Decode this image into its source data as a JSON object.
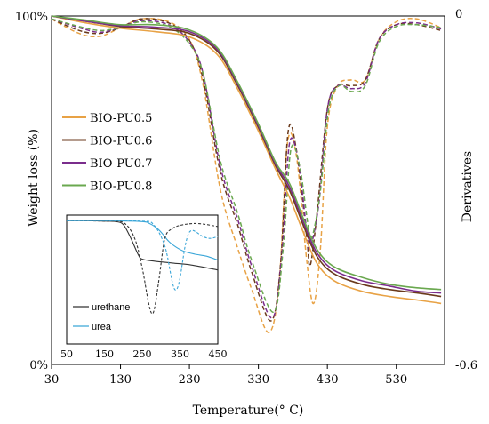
{
  "chart_data": {
    "type": "line",
    "xlabel": "Temperature(° C)",
    "ylabel": "Weight loss (%)",
    "ylabel_right": "Derivatives",
    "xlim": [
      30,
      600
    ],
    "x_ticks": [
      "30",
      "130",
      "230",
      "330",
      "430",
      "530"
    ],
    "ylim": [
      0,
      100
    ],
    "y_ticks": [
      "0%",
      "100%"
    ],
    "y2lim": [
      -0.6,
      0
    ],
    "y2_ticks": [
      "0",
      "-0.6"
    ],
    "legend_position": "left",
    "colors": {
      "BIO-PU0.5": "#e8a245",
      "BIO-PU0.6": "#6b3a1c",
      "BIO-PU0.7": "#7a2d8c",
      "BIO-PU0.8": "#6aa84f"
    },
    "series": [
      {
        "name": "BIO-PU0.5",
        "type": "weight",
        "points": [
          [
            30,
            100
          ],
          [
            80,
            98
          ],
          [
            130,
            96.5
          ],
          [
            180,
            95.5
          ],
          [
            230,
            94
          ],
          [
            270,
            89
          ],
          [
            300,
            79
          ],
          [
            330,
            67
          ],
          [
            355,
            56
          ],
          [
            375,
            48
          ],
          [
            395,
            38
          ],
          [
            415,
            29
          ],
          [
            440,
            24
          ],
          [
            480,
            21
          ],
          [
            520,
            19.5
          ],
          [
            560,
            18.5
          ],
          [
            595,
            17.5
          ]
        ]
      },
      {
        "name": "BIO-PU0.6",
        "type": "weight",
        "points": [
          [
            30,
            100
          ],
          [
            80,
            98.5
          ],
          [
            130,
            97
          ],
          [
            180,
            96.3
          ],
          [
            230,
            95
          ],
          [
            270,
            90
          ],
          [
            300,
            80
          ],
          [
            330,
            68
          ],
          [
            355,
            57
          ],
          [
            375,
            50
          ],
          [
            395,
            40
          ],
          [
            415,
            31
          ],
          [
            440,
            26
          ],
          [
            480,
            23
          ],
          [
            520,
            21.5
          ],
          [
            560,
            20.5
          ],
          [
            595,
            19.5
          ]
        ]
      },
      {
        "name": "BIO-PU0.7",
        "type": "weight",
        "points": [
          [
            30,
            100
          ],
          [
            80,
            98.5
          ],
          [
            130,
            97.2
          ],
          [
            180,
            96.8
          ],
          [
            230,
            95.5
          ],
          [
            270,
            90.5
          ],
          [
            300,
            80.5
          ],
          [
            330,
            68.5
          ],
          [
            355,
            57.5
          ],
          [
            375,
            51
          ],
          [
            395,
            41
          ],
          [
            415,
            32
          ],
          [
            440,
            27
          ],
          [
            480,
            24
          ],
          [
            520,
            22.5
          ],
          [
            560,
            21
          ],
          [
            595,
            20.5
          ]
        ]
      },
      {
        "name": "BIO-PU0.8",
        "type": "weight",
        "points": [
          [
            30,
            100
          ],
          [
            80,
            98.8
          ],
          [
            130,
            97.5
          ],
          [
            180,
            97.5
          ],
          [
            230,
            96
          ],
          [
            270,
            91
          ],
          [
            300,
            81
          ],
          [
            330,
            69
          ],
          [
            355,
            58
          ],
          [
            375,
            52
          ],
          [
            395,
            42
          ],
          [
            415,
            33
          ],
          [
            440,
            28
          ],
          [
            480,
            25
          ],
          [
            520,
            23
          ],
          [
            560,
            22
          ],
          [
            595,
            21.5
          ]
        ]
      },
      {
        "name": "BIO-PU0.5",
        "type": "derivative",
        "points": [
          [
            30,
            -0.005
          ],
          [
            70,
            -0.03
          ],
          [
            100,
            -0.035
          ],
          [
            130,
            -0.02
          ],
          [
            160,
            -0.005
          ],
          [
            200,
            -0.01
          ],
          [
            230,
            -0.04
          ],
          [
            250,
            -0.12
          ],
          [
            275,
            -0.3
          ],
          [
            300,
            -0.4
          ],
          [
            320,
            -0.47
          ],
          [
            345,
            -0.545
          ],
          [
            360,
            -0.46
          ],
          [
            372,
            -0.22
          ],
          [
            385,
            -0.24
          ],
          [
            400,
            -0.42
          ],
          [
            410,
            -0.495
          ],
          [
            420,
            -0.4
          ],
          [
            430,
            -0.19
          ],
          [
            445,
            -0.12
          ],
          [
            465,
            -0.11
          ],
          [
            485,
            -0.11
          ],
          [
            505,
            -0.04
          ],
          [
            530,
            -0.01
          ],
          [
            560,
            -0.005
          ],
          [
            595,
            -0.02
          ]
        ]
      },
      {
        "name": "BIO-PU0.6",
        "type": "derivative",
        "points": [
          [
            30,
            -0.005
          ],
          [
            70,
            -0.025
          ],
          [
            100,
            -0.03
          ],
          [
            130,
            -0.02
          ],
          [
            160,
            -0.005
          ],
          [
            200,
            -0.012
          ],
          [
            230,
            -0.042
          ],
          [
            250,
            -0.11
          ],
          [
            275,
            -0.27
          ],
          [
            300,
            -0.36
          ],
          [
            320,
            -0.44
          ],
          [
            348,
            -0.525
          ],
          [
            362,
            -0.43
          ],
          [
            373,
            -0.2
          ],
          [
            385,
            -0.23
          ],
          [
            400,
            -0.38
          ],
          [
            405,
            -0.43
          ],
          [
            415,
            -0.34
          ],
          [
            430,
            -0.16
          ],
          [
            445,
            -0.12
          ],
          [
            465,
            -0.12
          ],
          [
            485,
            -0.11
          ],
          [
            505,
            -0.04
          ],
          [
            530,
            -0.015
          ],
          [
            560,
            -0.015
          ],
          [
            595,
            -0.025
          ]
        ]
      },
      {
        "name": "BIO-PU0.7",
        "type": "derivative",
        "points": [
          [
            30,
            -0.005
          ],
          [
            70,
            -0.02
          ],
          [
            100,
            -0.028
          ],
          [
            130,
            -0.02
          ],
          [
            160,
            -0.008
          ],
          [
            200,
            -0.015
          ],
          [
            230,
            -0.045
          ],
          [
            250,
            -0.1
          ],
          [
            275,
            -0.26
          ],
          [
            300,
            -0.35
          ],
          [
            320,
            -0.43
          ],
          [
            350,
            -0.52
          ],
          [
            364,
            -0.41
          ],
          [
            375,
            -0.22
          ],
          [
            388,
            -0.25
          ],
          [
            400,
            -0.37
          ],
          [
            405,
            -0.4
          ],
          [
            418,
            -0.32
          ],
          [
            430,
            -0.16
          ],
          [
            445,
            -0.12
          ],
          [
            465,
            -0.125
          ],
          [
            485,
            -0.115
          ],
          [
            505,
            -0.04
          ],
          [
            530,
            -0.015
          ],
          [
            560,
            -0.012
          ],
          [
            595,
            -0.022
          ]
        ]
      },
      {
        "name": "BIO-PU0.8",
        "type": "derivative",
        "points": [
          [
            30,
            -0.005
          ],
          [
            70,
            -0.018
          ],
          [
            100,
            -0.025
          ],
          [
            130,
            -0.02
          ],
          [
            160,
            -0.01
          ],
          [
            200,
            -0.018
          ],
          [
            230,
            -0.048
          ],
          [
            250,
            -0.1
          ],
          [
            275,
            -0.25
          ],
          [
            300,
            -0.34
          ],
          [
            320,
            -0.42
          ],
          [
            352,
            -0.51
          ],
          [
            366,
            -0.4
          ],
          [
            377,
            -0.23
          ],
          [
            390,
            -0.26
          ],
          [
            402,
            -0.36
          ],
          [
            408,
            -0.38
          ],
          [
            420,
            -0.3
          ],
          [
            432,
            -0.16
          ],
          [
            447,
            -0.12
          ],
          [
            465,
            -0.13
          ],
          [
            485,
            -0.12
          ],
          [
            505,
            -0.045
          ],
          [
            530,
            -0.018
          ],
          [
            560,
            -0.015
          ],
          [
            595,
            -0.02
          ]
        ]
      }
    ],
    "inset": {
      "type": "line",
      "xlim": [
        50,
        450
      ],
      "x_ticks": [
        "50",
        "150",
        "250",
        "350",
        "450"
      ],
      "legend_position": "bottom-left",
      "colors": {
        "urethane": "#333333",
        "urea": "#3aa6d8"
      },
      "series": [
        {
          "name": "urethane",
          "type": "weight",
          "points": [
            [
              50,
              0.02
            ],
            [
              100,
              0.02
            ],
            [
              150,
              0.025
            ],
            [
              180,
              0.03
            ],
            [
              200,
              0.06
            ],
            [
              220,
              0.2
            ],
            [
              240,
              0.37
            ],
            [
              250,
              0.41
            ],
            [
              280,
              0.43
            ],
            [
              330,
              0.45
            ],
            [
              380,
              0.47
            ],
            [
              450,
              0.52
            ]
          ]
        },
        {
          "name": "urea",
          "type": "weight",
          "points": [
            [
              50,
              0.02
            ],
            [
              150,
              0.02
            ],
            [
              250,
              0.03
            ],
            [
              270,
              0.05
            ],
            [
              290,
              0.1
            ],
            [
              305,
              0.16
            ],
            [
              320,
              0.23
            ],
            [
              340,
              0.29
            ],
            [
              360,
              0.33
            ],
            [
              390,
              0.36
            ],
            [
              420,
              0.38
            ],
            [
              450,
              0.42
            ]
          ]
        },
        {
          "name": "urethane",
          "type": "derivative",
          "points": [
            [
              50,
              0.02
            ],
            [
              150,
              0.025
            ],
            [
              200,
              0.04
            ],
            [
              230,
              0.2
            ],
            [
              250,
              0.5
            ],
            [
              265,
              0.82
            ],
            [
              275,
              0.96
            ],
            [
              283,
              0.9
            ],
            [
              295,
              0.6
            ],
            [
              310,
              0.2
            ],
            [
              330,
              0.1
            ],
            [
              360,
              0.06
            ],
            [
              400,
              0.05
            ],
            [
              450,
              0.08
            ]
          ]
        },
        {
          "name": "urea",
          "type": "derivative",
          "points": [
            [
              50,
              0.02
            ],
            [
              150,
              0.02
            ],
            [
              250,
              0.025
            ],
            [
              280,
              0.06
            ],
            [
              310,
              0.28
            ],
            [
              330,
              0.65
            ],
            [
              340,
              0.72
            ],
            [
              350,
              0.6
            ],
            [
              365,
              0.25
            ],
            [
              380,
              0.12
            ],
            [
              410,
              0.18
            ],
            [
              430,
              0.2
            ],
            [
              450,
              0.18
            ]
          ]
        }
      ]
    }
  }
}
